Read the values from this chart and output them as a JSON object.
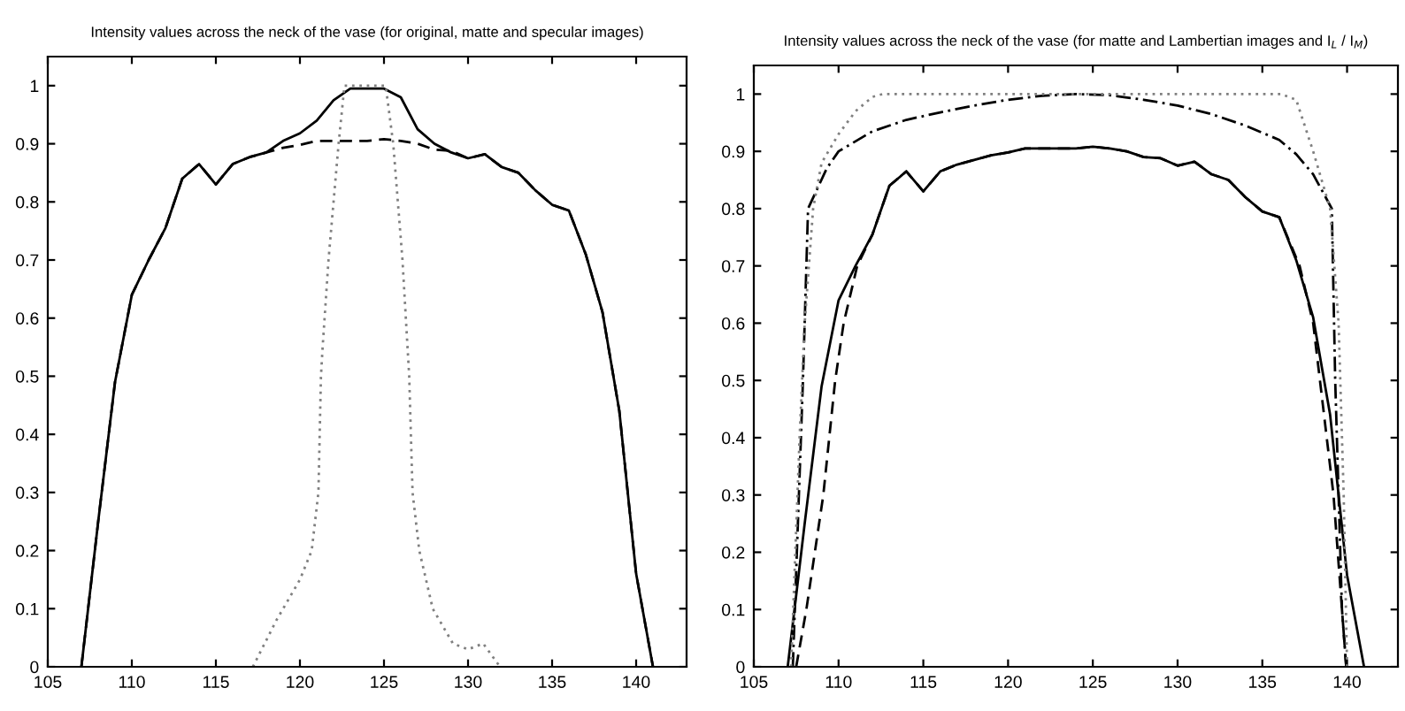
{
  "chart_data": [
    {
      "type": "line",
      "title": "Intensity values across the neck of the vase (for original, matte and specular images)",
      "xlim": [
        105,
        143
      ],
      "ylim": [
        0,
        1.05
      ],
      "xticks": [
        105,
        110,
        115,
        120,
        125,
        130,
        135,
        140
      ],
      "yticks": [
        0,
        0.1,
        0.2,
        0.3,
        0.4,
        0.5,
        0.6,
        0.7,
        0.8,
        0.9,
        1
      ],
      "series": [
        {
          "color": "#000000",
          "line_style": "solid",
          "x": [
            107,
            108,
            109,
            110,
            111,
            112,
            113,
            114,
            115,
            116,
            117,
            118,
            119,
            120,
            121,
            122,
            123,
            124,
            125,
            126,
            127,
            128,
            129,
            130,
            131,
            132,
            133,
            134,
            135,
            136,
            137,
            138,
            139,
            140,
            141
          ],
          "values": [
            0,
            0.25,
            0.49,
            0.64,
            0.7,
            0.755,
            0.84,
            0.865,
            0.83,
            0.865,
            0.877,
            0.885,
            0.905,
            0.918,
            0.94,
            0.975,
            0.995,
            0.995,
            0.995,
            0.98,
            0.925,
            0.9,
            0.885,
            0.875,
            0.882,
            0.86,
            0.85,
            0.82,
            0.795,
            0.785,
            0.71,
            0.61,
            0.44,
            0.16,
            0
          ]
        },
        {
          "color": "#000000",
          "line_style": "dashed",
          "x": [
            107,
            108,
            109,
            110,
            111,
            112,
            113,
            114,
            115,
            116,
            117,
            118,
            119,
            120,
            121,
            122,
            123,
            124,
            125,
            126,
            127,
            128,
            129,
            130,
            131,
            132,
            133,
            134,
            135,
            136,
            137,
            138,
            139,
            140,
            141
          ],
          "values": [
            0,
            0.25,
            0.49,
            0.64,
            0.7,
            0.755,
            0.84,
            0.865,
            0.83,
            0.865,
            0.877,
            0.885,
            0.893,
            0.898,
            0.905,
            0.905,
            0.905,
            0.905,
            0.908,
            0.905,
            0.9,
            0.89,
            0.888,
            0.875,
            0.882,
            0.86,
            0.85,
            0.82,
            0.795,
            0.785,
            0.71,
            0.61,
            0.44,
            0.16,
            0
          ]
        },
        {
          "color": "#808080",
          "line_style": "dotted",
          "x": [
            117.2,
            118.6,
            120,
            120.7,
            121.1,
            121.25,
            121.35,
            121.7,
            122.3,
            122.65,
            125.1,
            125.55,
            126.1,
            126.4,
            126.5,
            126.7,
            127.1,
            127.9,
            129.1,
            130,
            130.9,
            131.9
          ],
          "values": [
            0,
            0.08,
            0.15,
            0.2,
            0.3,
            0.5,
            0.55,
            0.7,
            0.9,
            1,
            1,
            0.9,
            0.7,
            0.55,
            0.5,
            0.3,
            0.2,
            0.1,
            0.04,
            0.03,
            0.04,
            0
          ]
        }
      ]
    },
    {
      "type": "line",
      "title": "Intensity values across the neck of the vase (for matte and Lambertian images and I$_{L}$ / I$_{M}$)",
      "xlim": [
        105,
        143
      ],
      "ylim": [
        0,
        1.05
      ],
      "xticks": [
        105,
        110,
        115,
        120,
        125,
        130,
        135,
        140
      ],
      "yticks": [
        0,
        0.1,
        0.2,
        0.3,
        0.4,
        0.5,
        0.6,
        0.7,
        0.8,
        0.9,
        1
      ],
      "series": [
        {
          "color": "#000000",
          "line_style": "solid",
          "x": [
            107,
            108,
            109,
            110,
            111,
            112,
            113,
            114,
            115,
            116,
            117,
            118,
            119,
            120,
            121,
            122,
            123,
            124,
            125,
            126,
            127,
            128,
            129,
            130,
            131,
            132,
            133,
            134,
            135,
            136,
            137,
            138,
            139,
            140,
            141
          ],
          "values": [
            0,
            0.25,
            0.49,
            0.64,
            0.7,
            0.755,
            0.84,
            0.865,
            0.83,
            0.865,
            0.877,
            0.885,
            0.893,
            0.898,
            0.905,
            0.905,
            0.905,
            0.905,
            0.908,
            0.905,
            0.9,
            0.89,
            0.888,
            0.875,
            0.882,
            0.86,
            0.85,
            0.82,
            0.795,
            0.785,
            0.71,
            0.61,
            0.44,
            0.16,
            0
          ]
        },
        {
          "color": "#000000",
          "line_style": "dashed",
          "x": [
            107.5,
            108.1,
            109.1,
            109.8,
            110.3,
            111.1,
            112,
            113,
            114,
            115,
            116,
            117,
            118,
            119,
            120,
            121,
            122,
            123,
            124,
            125,
            126,
            127,
            128,
            129,
            130,
            131,
            132,
            133,
            134,
            135,
            136,
            137.2,
            138,
            138.4,
            139.2,
            139.7,
            139.95
          ],
          "values": [
            0,
            0.1,
            0.3,
            0.5,
            0.6,
            0.7,
            0.755,
            0.84,
            0.865,
            0.83,
            0.865,
            0.877,
            0.885,
            0.893,
            0.898,
            0.905,
            0.905,
            0.905,
            0.905,
            0.908,
            0.905,
            0.9,
            0.89,
            0.888,
            0.875,
            0.882,
            0.86,
            0.85,
            0.82,
            0.795,
            0.785,
            0.7,
            0.6,
            0.5,
            0.3,
            0.1,
            0
          ]
        },
        {
          "color": "#000000",
          "line_style": "dashdot",
          "x": [
            107.3,
            107.6,
            107.9,
            108.2,
            109.3,
            110,
            112,
            114,
            116,
            118,
            120,
            122,
            124,
            126,
            128,
            130,
            132,
            134,
            136,
            137,
            138,
            139.1,
            139.3,
            139.7,
            139.95
          ],
          "values": [
            0,
            0.25,
            0.5,
            0.8,
            0.87,
            0.9,
            0.935,
            0.955,
            0.968,
            0.98,
            0.99,
            0.997,
            1,
            0.998,
            0.99,
            0.98,
            0.965,
            0.945,
            0.92,
            0.895,
            0.86,
            0.8,
            0.5,
            0.1,
            0
          ]
        },
        {
          "color": "#808080",
          "line_style": "dotted",
          "x": [
            107.2,
            107.7,
            108,
            108.5,
            109,
            110,
            111,
            112,
            112.6,
            136.1,
            137,
            138,
            139,
            139.5,
            139.8,
            140
          ],
          "values": [
            0,
            0.4,
            0.6,
            0.8,
            0.88,
            0.93,
            0.97,
            0.995,
            1,
            1,
            0.99,
            0.9,
            0.8,
            0.6,
            0.3,
            0
          ]
        }
      ]
    }
  ]
}
